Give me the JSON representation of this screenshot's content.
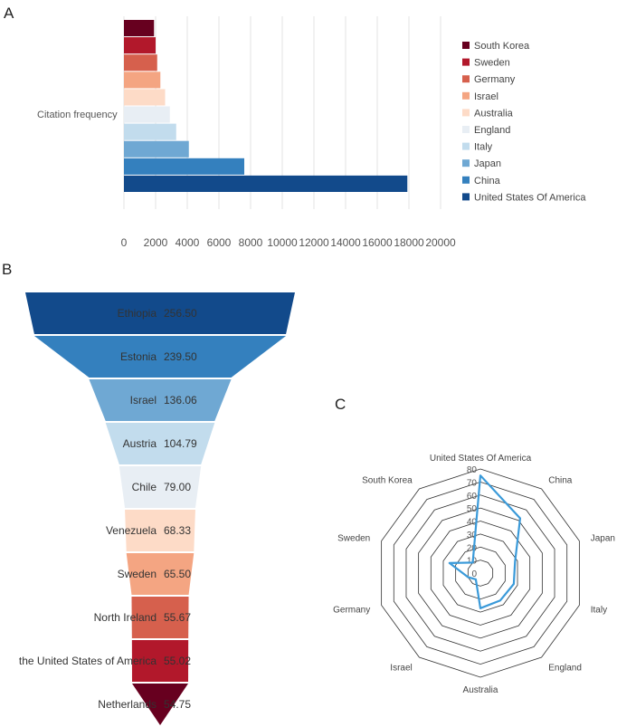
{
  "chart_data": [
    {
      "id": "A",
      "panel_label": "A",
      "type": "bar",
      "orientation": "horizontal",
      "ylabel": "Citation frequency",
      "xlim": [
        0,
        20000
      ],
      "xticks": [
        "0",
        "2000",
        "4000",
        "6000",
        "8000",
        "10000",
        "12000",
        "14000",
        "16000",
        "18000",
        "20000"
      ],
      "grid": true,
      "legend_position": "right",
      "series": [
        {
          "name": "South Korea",
          "value": 1900,
          "color": "#67001f"
        },
        {
          "name": "Sweden",
          "value": 2000,
          "color": "#b2182b"
        },
        {
          "name": "Germany",
          "value": 2100,
          "color": "#d6604d"
        },
        {
          "name": "Israel",
          "value": 2300,
          "color": "#f4a582"
        },
        {
          "name": "Australia",
          "value": 2600,
          "color": "#fddbc7"
        },
        {
          "name": "England",
          "value": 2900,
          "color": "#e8eef4"
        },
        {
          "name": "Italy",
          "value": 3300,
          "color": "#c2dced"
        },
        {
          "name": "Japan",
          "value": 4100,
          "color": "#6fa8d3"
        },
        {
          "name": "China",
          "value": 7600,
          "color": "#3480be"
        },
        {
          "name": "United States Of America",
          "value": 17900,
          "color": "#124a8b"
        }
      ]
    },
    {
      "id": "B",
      "panel_label": "B",
      "type": "funnel",
      "items": [
        {
          "name": "Ethiopia",
          "value": "256.50",
          "num": 256.5,
          "color": "#124a8b"
        },
        {
          "name": "Estonia",
          "value": "239.50",
          "num": 239.5,
          "color": "#3480be"
        },
        {
          "name": "Israel",
          "value": "136.06",
          "num": 136.06,
          "color": "#6fa8d3"
        },
        {
          "name": "Austria",
          "value": "104.79",
          "num": 104.79,
          "color": "#c2dced"
        },
        {
          "name": "Chile",
          "value": "79.00",
          "num": 79.0,
          "color": "#e8eef4"
        },
        {
          "name": "Venezuela",
          "value": "68.33",
          "num": 68.33,
          "color": "#fddbc7"
        },
        {
          "name": "Sweden",
          "value": "65.50",
          "num": 65.5,
          "color": "#f4a582"
        },
        {
          "name": "North Ireland",
          "value": "55.67",
          "num": 55.67,
          "color": "#d6604d"
        },
        {
          "name": "the United States of America",
          "value": "55.02",
          "num": 55.02,
          "color": "#b2182b"
        },
        {
          "name": "Netherlands",
          "value": "54.75",
          "num": 54.75,
          "color": "#67001f"
        }
      ]
    },
    {
      "id": "C",
      "panel_label": "C",
      "type": "radar",
      "rlim": [
        0,
        80
      ],
      "rticks": [
        "0",
        "10",
        "20",
        "30",
        "40",
        "50",
        "60",
        "70",
        "80"
      ],
      "line_color": "#3a9ad9",
      "axes": [
        {
          "name": "United States Of America",
          "value": 75
        },
        {
          "name": "China",
          "value": 52
        },
        {
          "name": "Japan",
          "value": 28
        },
        {
          "name": "Italy",
          "value": 27
        },
        {
          "name": "England",
          "value": 26
        },
        {
          "name": "Australia",
          "value": 27
        },
        {
          "name": "Israel",
          "value": 6
        },
        {
          "name": "Germany",
          "value": 10
        },
        {
          "name": "Sweden",
          "value": 25
        },
        {
          "name": "South Korea",
          "value": 10
        }
      ]
    }
  ]
}
